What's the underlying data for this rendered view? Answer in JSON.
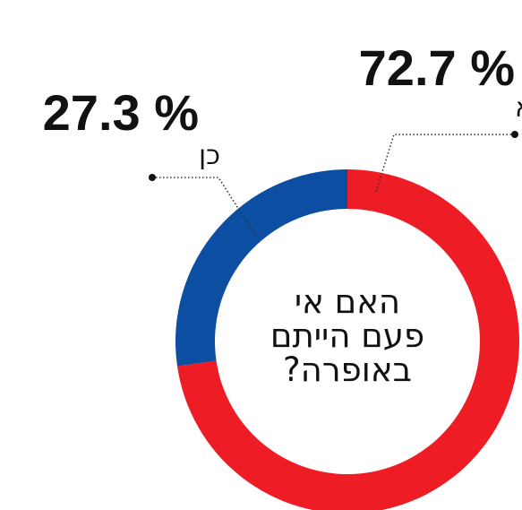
{
  "chart_data": {
    "type": "pie",
    "donut": true,
    "title": "האם אי פעם הייתם באופרה?",
    "title_lines": [
      "האם אי",
      "פעם הייתם",
      "באופרה?"
    ],
    "slices": [
      {
        "label": "לא",
        "value": 72.7,
        "value_label": "72.7 %",
        "color": "#ee1c25"
      },
      {
        "label": "כן",
        "value": 27.3,
        "value_label": "27.3 %",
        "color": "#0b4ea2"
      }
    ]
  }
}
